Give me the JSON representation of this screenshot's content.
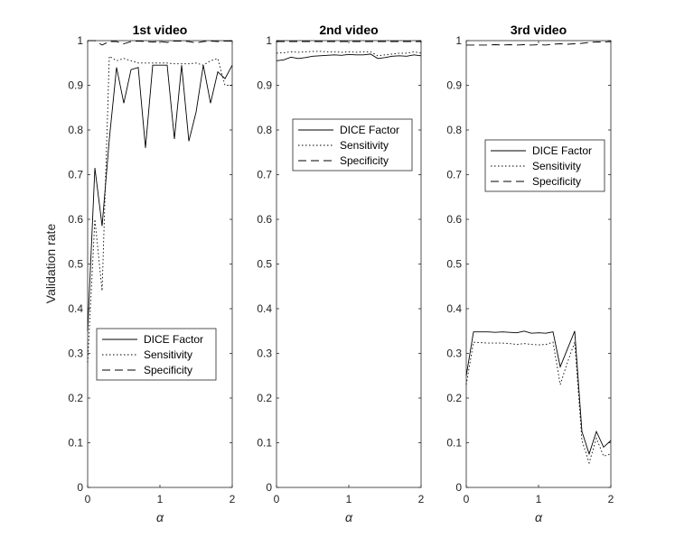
{
  "figure": {
    "ylabel": "Validation rate"
  },
  "chart_data": [
    {
      "type": "line",
      "title": "1st video",
      "xlabel": "α",
      "ylabel": "Validation rate",
      "xlim": [
        0,
        2
      ],
      "ylim": [
        0,
        1
      ],
      "xticks": [
        0,
        1,
        2
      ],
      "yticks": [
        0,
        0.1,
        0.2,
        0.3,
        0.4,
        0.5,
        0.6,
        0.7,
        0.8,
        0.9,
        1
      ],
      "grid": false,
      "legend_position": "bottom",
      "series": [
        {
          "name": "DICE Factor",
          "style": "solid",
          "x": [
            0,
            0.1,
            0.2,
            0.3,
            0.4,
            0.5,
            0.6,
            0.7,
            0.8,
            0.9,
            1.0,
            1.1,
            1.2,
            1.3,
            1.4,
            1.5,
            1.6,
            1.7,
            1.8,
            1.9,
            2.0
          ],
          "y": [
            0.35,
            0.715,
            0.585,
            0.78,
            0.94,
            0.86,
            0.935,
            0.94,
            0.76,
            0.945,
            0.945,
            0.945,
            0.78,
            0.945,
            0.775,
            0.84,
            0.945,
            0.86,
            0.93,
            0.915,
            0.945
          ]
        },
        {
          "name": "Sensitivity",
          "style": "dotted",
          "x": [
            0,
            0.1,
            0.2,
            0.3,
            0.4,
            0.5,
            0.6,
            0.7,
            0.8,
            0.9,
            1.0,
            1.1,
            1.2,
            1.3,
            1.4,
            1.5,
            1.6,
            1.7,
            1.8,
            1.9,
            2.0
          ],
          "y": [
            0.28,
            0.6,
            0.44,
            0.965,
            0.955,
            0.96,
            0.955,
            0.95,
            0.95,
            0.95,
            0.95,
            0.95,
            0.948,
            0.948,
            0.948,
            0.95,
            0.945,
            0.955,
            0.96,
            0.9,
            0.9
          ]
        },
        {
          "name": "Specificity",
          "style": "dashed",
          "x": [
            0,
            0.1,
            0.2,
            0.3,
            0.4,
            0.5,
            0.6,
            0.7,
            0.8,
            0.9,
            1.0,
            1.1,
            1.2,
            1.3,
            1.4,
            1.5,
            1.6,
            1.7,
            1.8,
            1.9,
            2.0
          ],
          "y": [
            1.0,
            1.0,
            0.99,
            0.998,
            0.998,
            0.993,
            0.998,
            0.999,
            0.998,
            0.997,
            0.998,
            0.996,
            0.999,
            0.999,
            0.998,
            0.995,
            0.998,
            0.999,
            0.998,
            0.999,
            0.999
          ]
        }
      ]
    },
    {
      "type": "line",
      "title": "2nd video",
      "xlabel": "α",
      "ylabel": "",
      "xlim": [
        0,
        2
      ],
      "ylim": [
        0,
        1
      ],
      "xticks": [
        0,
        1,
        2
      ],
      "yticks": [
        0,
        0.1,
        0.2,
        0.3,
        0.4,
        0.5,
        0.6,
        0.7,
        0.8,
        0.9,
        1
      ],
      "grid": false,
      "legend_position": "top-left",
      "series": [
        {
          "name": "DICE Factor",
          "style": "solid",
          "x": [
            0,
            0.1,
            0.2,
            0.3,
            0.4,
            0.5,
            0.6,
            0.7,
            0.8,
            0.9,
            1.0,
            1.1,
            1.2,
            1.3,
            1.4,
            1.5,
            1.6,
            1.7,
            1.8,
            1.9,
            2.0
          ],
          "y": [
            0.955,
            0.957,
            0.963,
            0.96,
            0.962,
            0.965,
            0.966,
            0.967,
            0.968,
            0.967,
            0.969,
            0.968,
            0.968,
            0.97,
            0.96,
            0.962,
            0.965,
            0.966,
            0.965,
            0.968,
            0.966
          ]
        },
        {
          "name": "Sensitivity",
          "style": "dotted",
          "x": [
            0,
            0.1,
            0.2,
            0.3,
            0.4,
            0.5,
            0.6,
            0.7,
            0.8,
            0.9,
            1.0,
            1.1,
            1.2,
            1.3,
            1.4,
            1.5,
            1.6,
            1.7,
            1.8,
            1.9,
            2.0
          ],
          "y": [
            0.972,
            0.973,
            0.975,
            0.974,
            0.975,
            0.976,
            0.976,
            0.975,
            0.975,
            0.974,
            0.975,
            0.974,
            0.975,
            0.975,
            0.966,
            0.968,
            0.97,
            0.972,
            0.972,
            0.975,
            0.972
          ]
        },
        {
          "name": "Specificity",
          "style": "dashed",
          "x": [
            0,
            0.1,
            0.2,
            0.3,
            0.4,
            0.5,
            0.6,
            0.7,
            0.8,
            0.9,
            1.0,
            1.1,
            1.2,
            1.3,
            1.4,
            1.5,
            1.6,
            1.7,
            1.8,
            1.9,
            2.0
          ],
          "y": [
            0.998,
            0.998,
            0.998,
            0.998,
            0.998,
            0.998,
            0.998,
            0.998,
            0.998,
            0.998,
            0.998,
            0.998,
            0.998,
            0.998,
            0.998,
            0.998,
            0.998,
            0.998,
            0.998,
            0.998,
            0.998
          ]
        }
      ]
    },
    {
      "type": "line",
      "title": "3rd video",
      "xlabel": "α",
      "ylabel": "",
      "xlim": [
        0,
        2
      ],
      "ylim": [
        0,
        1
      ],
      "xticks": [
        0,
        1,
        2
      ],
      "yticks": [
        0,
        0.1,
        0.2,
        0.3,
        0.4,
        0.5,
        0.6,
        0.7,
        0.8,
        0.9,
        1
      ],
      "grid": false,
      "legend_position": "center",
      "series": [
        {
          "name": "DICE Factor",
          "style": "solid",
          "x": [
            0,
            0.1,
            0.2,
            0.3,
            0.4,
            0.5,
            0.6,
            0.7,
            0.8,
            0.9,
            1.0,
            1.1,
            1.2,
            1.3,
            1.4,
            1.5,
            1.6,
            1.7,
            1.8,
            1.9,
            2.0
          ],
          "y": [
            0.25,
            0.348,
            0.348,
            0.348,
            0.347,
            0.348,
            0.347,
            0.346,
            0.35,
            0.345,
            0.346,
            0.345,
            0.348,
            0.27,
            0.31,
            0.35,
            0.125,
            0.075,
            0.125,
            0.09,
            0.105
          ]
        },
        {
          "name": "Sensitivity",
          "style": "dotted",
          "x": [
            0,
            0.1,
            0.2,
            0.3,
            0.4,
            0.5,
            0.6,
            0.7,
            0.8,
            0.9,
            1.0,
            1.1,
            1.2,
            1.3,
            1.4,
            1.5,
            1.6,
            1.7,
            1.8,
            1.9,
            2.0
          ],
          "y": [
            0.23,
            0.325,
            0.324,
            0.323,
            0.323,
            0.323,
            0.322,
            0.32,
            0.322,
            0.32,
            0.319,
            0.32,
            0.325,
            0.23,
            0.28,
            0.325,
            0.105,
            0.055,
            0.11,
            0.07,
            0.075
          ]
        },
        {
          "name": "Specificity",
          "style": "dashed",
          "x": [
            0,
            0.1,
            0.2,
            0.3,
            0.4,
            0.5,
            0.6,
            0.7,
            0.8,
            0.9,
            1.0,
            1.1,
            1.2,
            1.3,
            1.4,
            1.5,
            1.6,
            1.7,
            1.8,
            1.9,
            2.0
          ],
          "y": [
            0.99,
            0.99,
            0.99,
            0.99,
            0.991,
            0.99,
            0.991,
            0.99,
            0.991,
            0.99,
            0.991,
            0.99,
            0.992,
            0.993,
            0.992,
            0.993,
            0.994,
            0.996,
            0.997,
            0.997,
            0.998
          ]
        }
      ]
    }
  ]
}
